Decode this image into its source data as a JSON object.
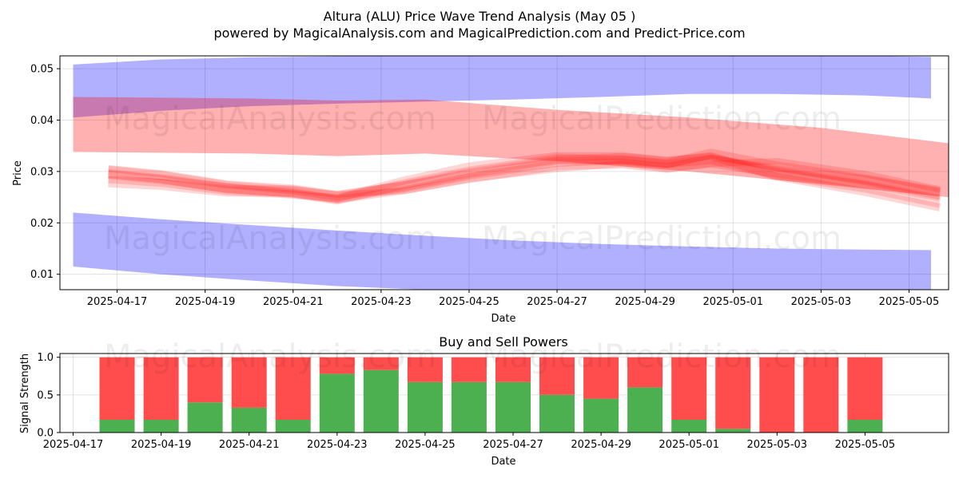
{
  "title": "Altura (ALU) Price Wave Trend Analysis (May 05 )",
  "subtitle": "powered by MagicalAnalysis.com and MagicalPrediction.com and Predict-Price.com",
  "watermarks": [
    "MagicalAnalysis.com",
    "MagicalPrediction.com"
  ],
  "colors": {
    "upper_band": "#0000ff",
    "lower_band": "#0000ff",
    "wave_band": "#ff0000",
    "price_lines": "#ff0000",
    "buy": "#4caf50",
    "sell": "#ff4d4d"
  },
  "chart_data": [
    {
      "type": "area",
      "title": "",
      "xlabel": "Date",
      "ylabel": "Price",
      "x_ticks": [
        "2025-04-17",
        "2025-04-19",
        "2025-04-21",
        "2025-04-23",
        "2025-04-25",
        "2025-04-27",
        "2025-04-29",
        "2025-05-01",
        "2025-05-03",
        "2025-05-05"
      ],
      "y_ticks": [
        "0.01",
        "0.02",
        "0.03",
        "0.04",
        "0.05"
      ],
      "xlim": [
        "2025-04-15.7",
        "2025-05-05.9"
      ],
      "ylim": [
        0.007,
        0.0525
      ],
      "grid": true,
      "upper_blue_band": {
        "x": [
          "2025-04-16",
          "2025-04-18",
          "2025-04-20",
          "2025-04-22",
          "2025-04-24",
          "2025-04-26",
          "2025-04-28",
          "2025-04-30",
          "2025-05-02",
          "2025-05-04",
          "2025-05-05.5"
        ],
        "top": [
          0.0508,
          0.0518,
          0.0522,
          0.0524,
          0.0525,
          0.0525,
          0.0526,
          0.0527,
          0.0527,
          0.0526,
          0.0523
        ],
        "bottom": [
          0.0405,
          0.0418,
          0.0427,
          0.0432,
          0.0436,
          0.044,
          0.0445,
          0.0451,
          0.0451,
          0.0448,
          0.0442
        ]
      },
      "lower_blue_band": {
        "x": [
          "2025-04-16",
          "2025-04-18",
          "2025-04-20",
          "2025-04-22",
          "2025-04-24",
          "2025-04-26",
          "2025-04-28",
          "2025-04-30",
          "2025-05-02",
          "2025-05-04",
          "2025-05-05.5"
        ],
        "top": [
          0.022,
          0.0207,
          0.0196,
          0.0185,
          0.0175,
          0.0166,
          0.0159,
          0.0154,
          0.015,
          0.0148,
          0.0147
        ],
        "bottom": [
          0.0115,
          0.01,
          0.0088,
          0.0077,
          0.007,
          0.007,
          0.007,
          0.007,
          0.007,
          0.007,
          0.007
        ]
      },
      "red_wave_band": {
        "x": [
          "2025-04-16",
          "2025-04-20",
          "2025-04-22",
          "2025-04-24",
          "2025-04-27",
          "2025-04-30",
          "2025-05-03",
          "2025-05-05.9"
        ],
        "top": [
          0.0445,
          0.0442,
          0.0438,
          0.044,
          0.042,
          0.0405,
          0.0385,
          0.0355
        ],
        "bottom": [
          0.0338,
          0.0335,
          0.033,
          0.0335,
          0.032,
          0.03,
          0.0275,
          0.025
        ]
      },
      "series": [
        {
          "x": [
            "2025-04-16.8",
            "2025-04-18",
            "2025-04-19.5",
            "2025-04-21",
            "2025-04-22",
            "2025-04-23.5",
            "2025-04-25",
            "2025-04-27",
            "2025-04-28.5",
            "2025-04-29.5",
            "2025-04-30.5",
            "2025-05-02",
            "2025-05-04",
            "2025-05-05.7"
          ],
          "values": [
            0.03,
            0.029,
            0.027,
            0.0262,
            0.025,
            0.0268,
            0.029,
            0.0315,
            0.0318,
            0.031,
            0.032,
            0.03,
            0.028,
            0.0255
          ]
        },
        {
          "x": [
            "2025-04-16.8",
            "2025-04-18",
            "2025-04-19.5",
            "2025-04-21",
            "2025-04-22",
            "2025-04-23.5",
            "2025-04-25",
            "2025-04-27",
            "2025-04-28.5",
            "2025-04-29.5",
            "2025-04-30.5",
            "2025-05-02",
            "2025-05-04",
            "2025-05-05.7"
          ],
          "values": [
            0.0295,
            0.0285,
            0.0268,
            0.0258,
            0.0245,
            0.0275,
            0.03,
            0.0325,
            0.0322,
            0.0315,
            0.0335,
            0.031,
            0.0285,
            0.026
          ]
        },
        {
          "x": [
            "2025-04-16.8",
            "2025-04-18",
            "2025-04-19.5",
            "2025-04-21",
            "2025-04-22",
            "2025-04-23.5",
            "2025-04-25",
            "2025-04-27",
            "2025-04-28.5",
            "2025-04-29.5",
            "2025-04-30.5",
            "2025-05-02",
            "2025-05-04",
            "2025-05-05.7"
          ],
          "values": [
            0.0285,
            0.0278,
            0.0262,
            0.0255,
            0.0248,
            0.0282,
            0.031,
            0.033,
            0.033,
            0.032,
            0.033,
            0.029,
            0.026,
            0.023
          ]
        },
        {
          "x": [
            "2025-04-16.8",
            "2025-04-18",
            "2025-04-19.5",
            "2025-04-21",
            "2025-04-22",
            "2025-04-23.5",
            "2025-04-25",
            "2025-04-27",
            "2025-04-28.5",
            "2025-04-29.5",
            "2025-04-30.5",
            "2025-05-02",
            "2025-05-04",
            "2025-05-05.7"
          ],
          "values": [
            0.0305,
            0.0295,
            0.0275,
            0.0265,
            0.0255,
            0.0262,
            0.0285,
            0.0305,
            0.0315,
            0.0305,
            0.0315,
            0.032,
            0.0295,
            0.0265
          ]
        },
        {
          "x": [
            "2025-04-16.8",
            "2025-04-18",
            "2025-04-19.5",
            "2025-04-21",
            "2025-04-22",
            "2025-04-23.5",
            "2025-04-25",
            "2025-04-27",
            "2025-04-28.5",
            "2025-04-29.5",
            "2025-04-30.5",
            "2025-05-02",
            "2025-05-04",
            "2025-05-05.7"
          ],
          "values": [
            0.028,
            0.0275,
            0.0262,
            0.0262,
            0.025,
            0.027,
            0.0295,
            0.032,
            0.0325,
            0.0318,
            0.0325,
            0.0295,
            0.027,
            0.024
          ]
        },
        {
          "x": [
            "2025-04-16.8",
            "2025-04-18",
            "2025-04-19.5",
            "2025-04-21",
            "2025-04-22",
            "2025-04-23.5",
            "2025-04-25",
            "2025-04-27",
            "2025-04-28.5",
            "2025-04-29.5",
            "2025-04-30.5",
            "2025-05-02",
            "2025-05-04",
            "2025-05-05.7"
          ],
          "values": [
            0.0298,
            0.0288,
            0.0272,
            0.026,
            0.0248,
            0.0266,
            0.0292,
            0.0318,
            0.032,
            0.0312,
            0.0328,
            0.0305,
            0.0278,
            0.025
          ]
        }
      ]
    },
    {
      "type": "bar",
      "title": "Buy and Sell Powers",
      "xlabel": "Date",
      "ylabel": "Signal Strength",
      "x_ticks": [
        "2025-04-17",
        "2025-04-19",
        "2025-04-21",
        "2025-04-23",
        "2025-04-25",
        "2025-04-27",
        "2025-04-29",
        "2025-05-01",
        "2025-05-03",
        "2025-05-05"
      ],
      "y_ticks": [
        "0.0",
        "0.5",
        "1.0"
      ],
      "ylim": [
        0,
        1.05
      ],
      "grid": true,
      "categories": [
        "2025-04-18",
        "2025-04-19",
        "2025-04-20",
        "2025-04-21",
        "2025-04-22",
        "2025-04-23",
        "2025-04-24",
        "2025-04-25",
        "2025-04-26",
        "2025-04-27",
        "2025-04-28",
        "2025-04-29",
        "2025-04-30",
        "2025-05-01",
        "2025-05-02",
        "2025-05-03",
        "2025-05-04",
        "2025-05-05"
      ],
      "series": [
        {
          "values": [
            0.17,
            0.17,
            0.4,
            0.33,
            0.17,
            0.78,
            0.83,
            0.67,
            0.67,
            0.67,
            0.5,
            0.45,
            0.6,
            0.17,
            0.05,
            0.0,
            0.0,
            0.17
          ]
        },
        {
          "values": [
            0.83,
            0.83,
            0.6,
            0.67,
            0.83,
            0.22,
            0.17,
            0.33,
            0.33,
            0.33,
            0.5,
            0.55,
            0.4,
            0.83,
            0.95,
            1.0,
            1.0,
            0.83
          ]
        }
      ]
    }
  ]
}
